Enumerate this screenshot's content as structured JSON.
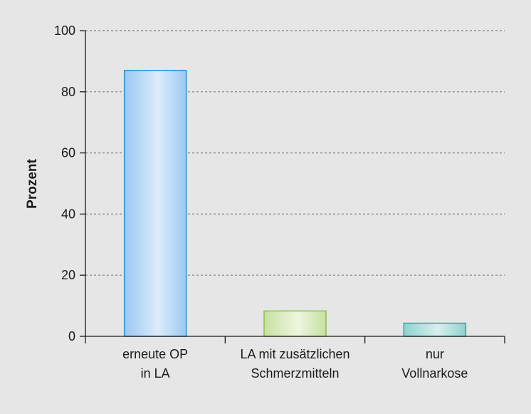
{
  "chart_data": {
    "type": "bar",
    "title": "",
    "xlabel": "",
    "ylabel": "Prozent",
    "ylim": [
      0,
      100
    ],
    "yticks": [
      0,
      20,
      40,
      60,
      80,
      100
    ],
    "grid": true,
    "categories": [
      [
        "erneute OP",
        "in LA"
      ],
      [
        "LA mit zusätzlichen",
        "Schmerzmitteln"
      ],
      [
        "nur",
        "Vollnarkose"
      ]
    ],
    "values": [
      87,
      8.3,
      4.3
    ],
    "colors": [
      {
        "fill_light": "#dcecfb",
        "fill_dark": "#9cc8f0",
        "stroke": "#2b8fd6"
      },
      {
        "fill_light": "#eef6e0",
        "fill_dark": "#c6e1a0",
        "stroke": "#8cbf4a"
      },
      {
        "fill_light": "#d6f0ee",
        "fill_dark": "#8fd3cf",
        "stroke": "#2fa9a3"
      }
    ],
    "background_color": "#e6e6e6",
    "grid_color": "#808080",
    "axis_color": "#1a1a1a"
  }
}
